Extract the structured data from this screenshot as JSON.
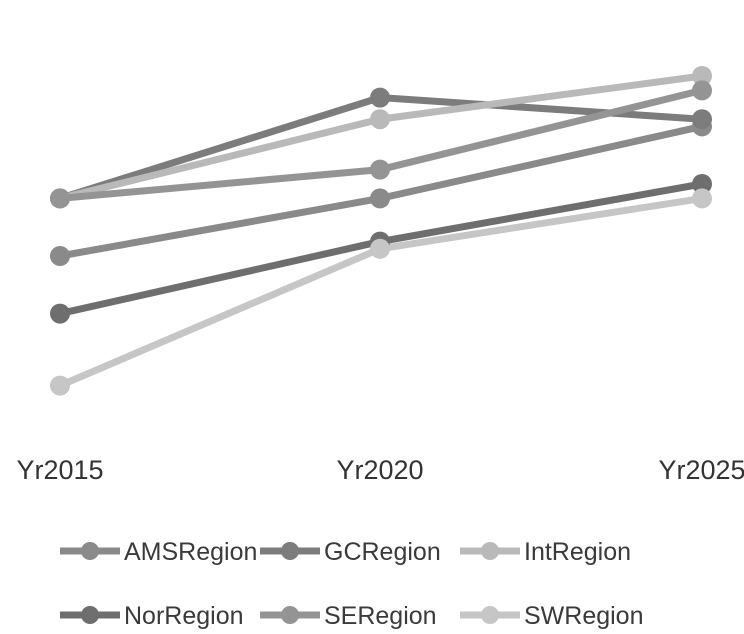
{
  "chart_data": {
    "type": "line",
    "title": "",
    "xlabel": "",
    "ylabel": "",
    "categories": [
      "Yr2015",
      "Yr2020",
      "Yr2025"
    ],
    "y_axis_visible": false,
    "grid": false,
    "legend_position": "bottom",
    "series": [
      {
        "name": "AMSRegion",
        "values": [
          70,
          78,
          88
        ],
        "color": "#8a8a8a"
      },
      {
        "name": "GCRegion",
        "values": [
          78,
          92,
          89
        ],
        "color": "#7c7c7c"
      },
      {
        "name": "IntRegion",
        "values": [
          78,
          89,
          95
        ],
        "color": "#b9b9b9"
      },
      {
        "name": "NorRegion",
        "values": [
          62,
          72,
          80
        ],
        "color": "#6e6e6e"
      },
      {
        "name": "SERegion",
        "values": [
          78,
          82,
          93
        ],
        "color": "#949494"
      },
      {
        "name": "SWRegion",
        "values": [
          52,
          71,
          78
        ],
        "color": "#c6c6c6"
      }
    ]
  }
}
